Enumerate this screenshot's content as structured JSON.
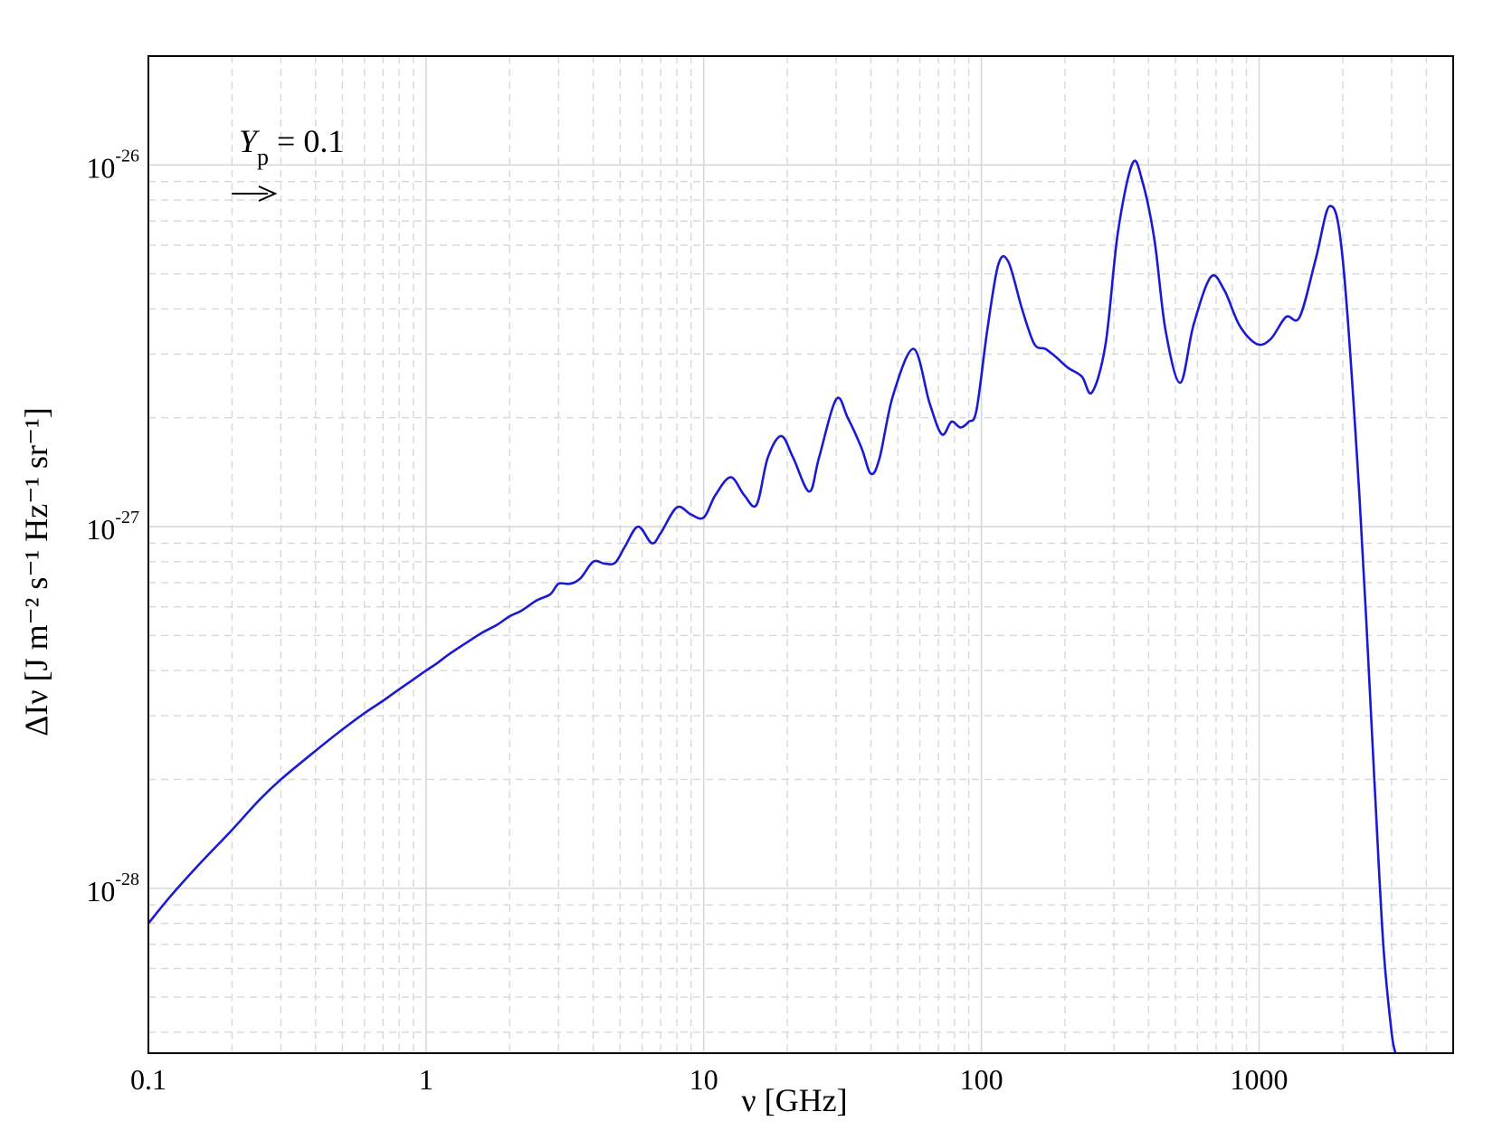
{
  "chart_data": {
    "type": "line",
    "title": "",
    "xlabel": "ν  [GHz]",
    "ylabel": "ΔIν  [J m⁻² s⁻¹ Hz⁻¹ sr⁻¹]",
    "xscale": "log",
    "yscale": "log",
    "xlim": [
      0.1,
      5000
    ],
    "ylim": [
      3.5e-29,
      2e-26
    ],
    "grid": true,
    "x_ticks": [
      {
        "value": 0.1,
        "label": "0.1"
      },
      {
        "value": 1,
        "label": "1"
      },
      {
        "value": 10,
        "label": "10"
      },
      {
        "value": 100,
        "label": "100"
      },
      {
        "value": 1000,
        "label": "1000"
      }
    ],
    "y_ticks": [
      {
        "value": 1e-28,
        "base": "10",
        "exp": "-28"
      },
      {
        "value": 1e-27,
        "base": "10",
        "exp": "-27"
      },
      {
        "value": 1e-26,
        "base": "10",
        "exp": "-26"
      }
    ],
    "annotation": {
      "text_symbol": "Y",
      "text_sub": "p",
      "text_value": " = 0.1"
    },
    "line_color": "#1a1ad4",
    "series": [
      {
        "x": [
          0.1,
          0.12,
          0.15,
          0.2,
          0.25,
          0.3,
          0.4,
          0.5,
          0.6,
          0.7,
          0.8,
          0.9,
          1.0,
          1.1,
          1.2,
          1.4,
          1.6,
          1.8,
          2.0,
          2.2,
          2.5,
          2.8,
          3.0,
          3.3,
          3.6,
          4.0,
          4.4,
          4.8,
          5.2,
          5.8,
          6.5,
          7.0,
          8.0,
          9.0,
          10.0,
          11.0,
          12.5,
          14.0,
          15.5,
          17.0,
          19.0,
          21.0,
          24.0,
          26.0,
          30.0,
          33.0,
          37.0,
          40.0,
          43.0,
          48.0,
          57.0,
          65.0,
          72.0,
          78.0,
          84.0,
          90.0,
          96.0,
          105.0,
          115.0,
          125.0,
          140.0,
          155.0,
          170.0,
          185.0,
          205.0,
          230.0,
          250.0,
          280.0,
          310.0,
          350.0,
          380.0,
          420.0,
          460.0,
          520.0,
          580.0,
          670.0,
          750.0,
          850.0,
          980.0,
          1100.0,
          1250.0,
          1400.0,
          1600.0,
          1800.0,
          2000.0,
          2300.0,
          2600.0,
          2800.0,
          3000.0,
          3100.0
        ],
        "y": [
          8e-29,
          9.5e-29,
          1.15e-28,
          1.45e-28,
          1.75e-28,
          2e-28,
          2.4e-28,
          2.75e-28,
          3.05e-28,
          3.3e-28,
          3.55e-28,
          3.78e-28,
          4e-28,
          4.2e-28,
          4.42e-28,
          4.78e-28,
          5.1e-28,
          5.35e-28,
          5.65e-28,
          5.85e-28,
          6.25e-28,
          6.5e-28,
          6.95e-28,
          6.95e-28,
          7.2e-28,
          8e-28,
          7.9e-28,
          7.95e-28,
          8.8e-28,
          1e-27,
          9e-28,
          9.6e-28,
          1.13e-27,
          1.08e-27,
          1.06e-27,
          1.22e-27,
          1.37e-27,
          1.22e-27,
          1.15e-27,
          1.55e-27,
          1.78e-27,
          1.55e-27,
          1.25e-27,
          1.55e-27,
          2.25e-27,
          2e-27,
          1.65e-27,
          1.4e-27,
          1.55e-27,
          2.3e-27,
          3.1e-27,
          2.2e-27,
          1.8e-27,
          1.95e-27,
          1.88e-27,
          1.95e-27,
          2.1e-27,
          3.5e-27,
          5.3e-27,
          5.4e-27,
          4e-27,
          3.2e-27,
          3.1e-27,
          2.95e-27,
          2.75e-27,
          2.6e-27,
          2.35e-27,
          3.2e-27,
          6.5e-27,
          1.01e-26,
          9e-27,
          6.2e-27,
          3.5e-27,
          2.5e-27,
          3.6e-27,
          4.9e-27,
          4.5e-27,
          3.6e-27,
          3.2e-27,
          3.3e-27,
          3.8e-27,
          3.8e-27,
          5.5e-27,
          7.7e-27,
          5.5e-27,
          1.2e-27,
          2e-28,
          7e-29,
          4e-29,
          3.5e-29
        ]
      }
    ]
  }
}
